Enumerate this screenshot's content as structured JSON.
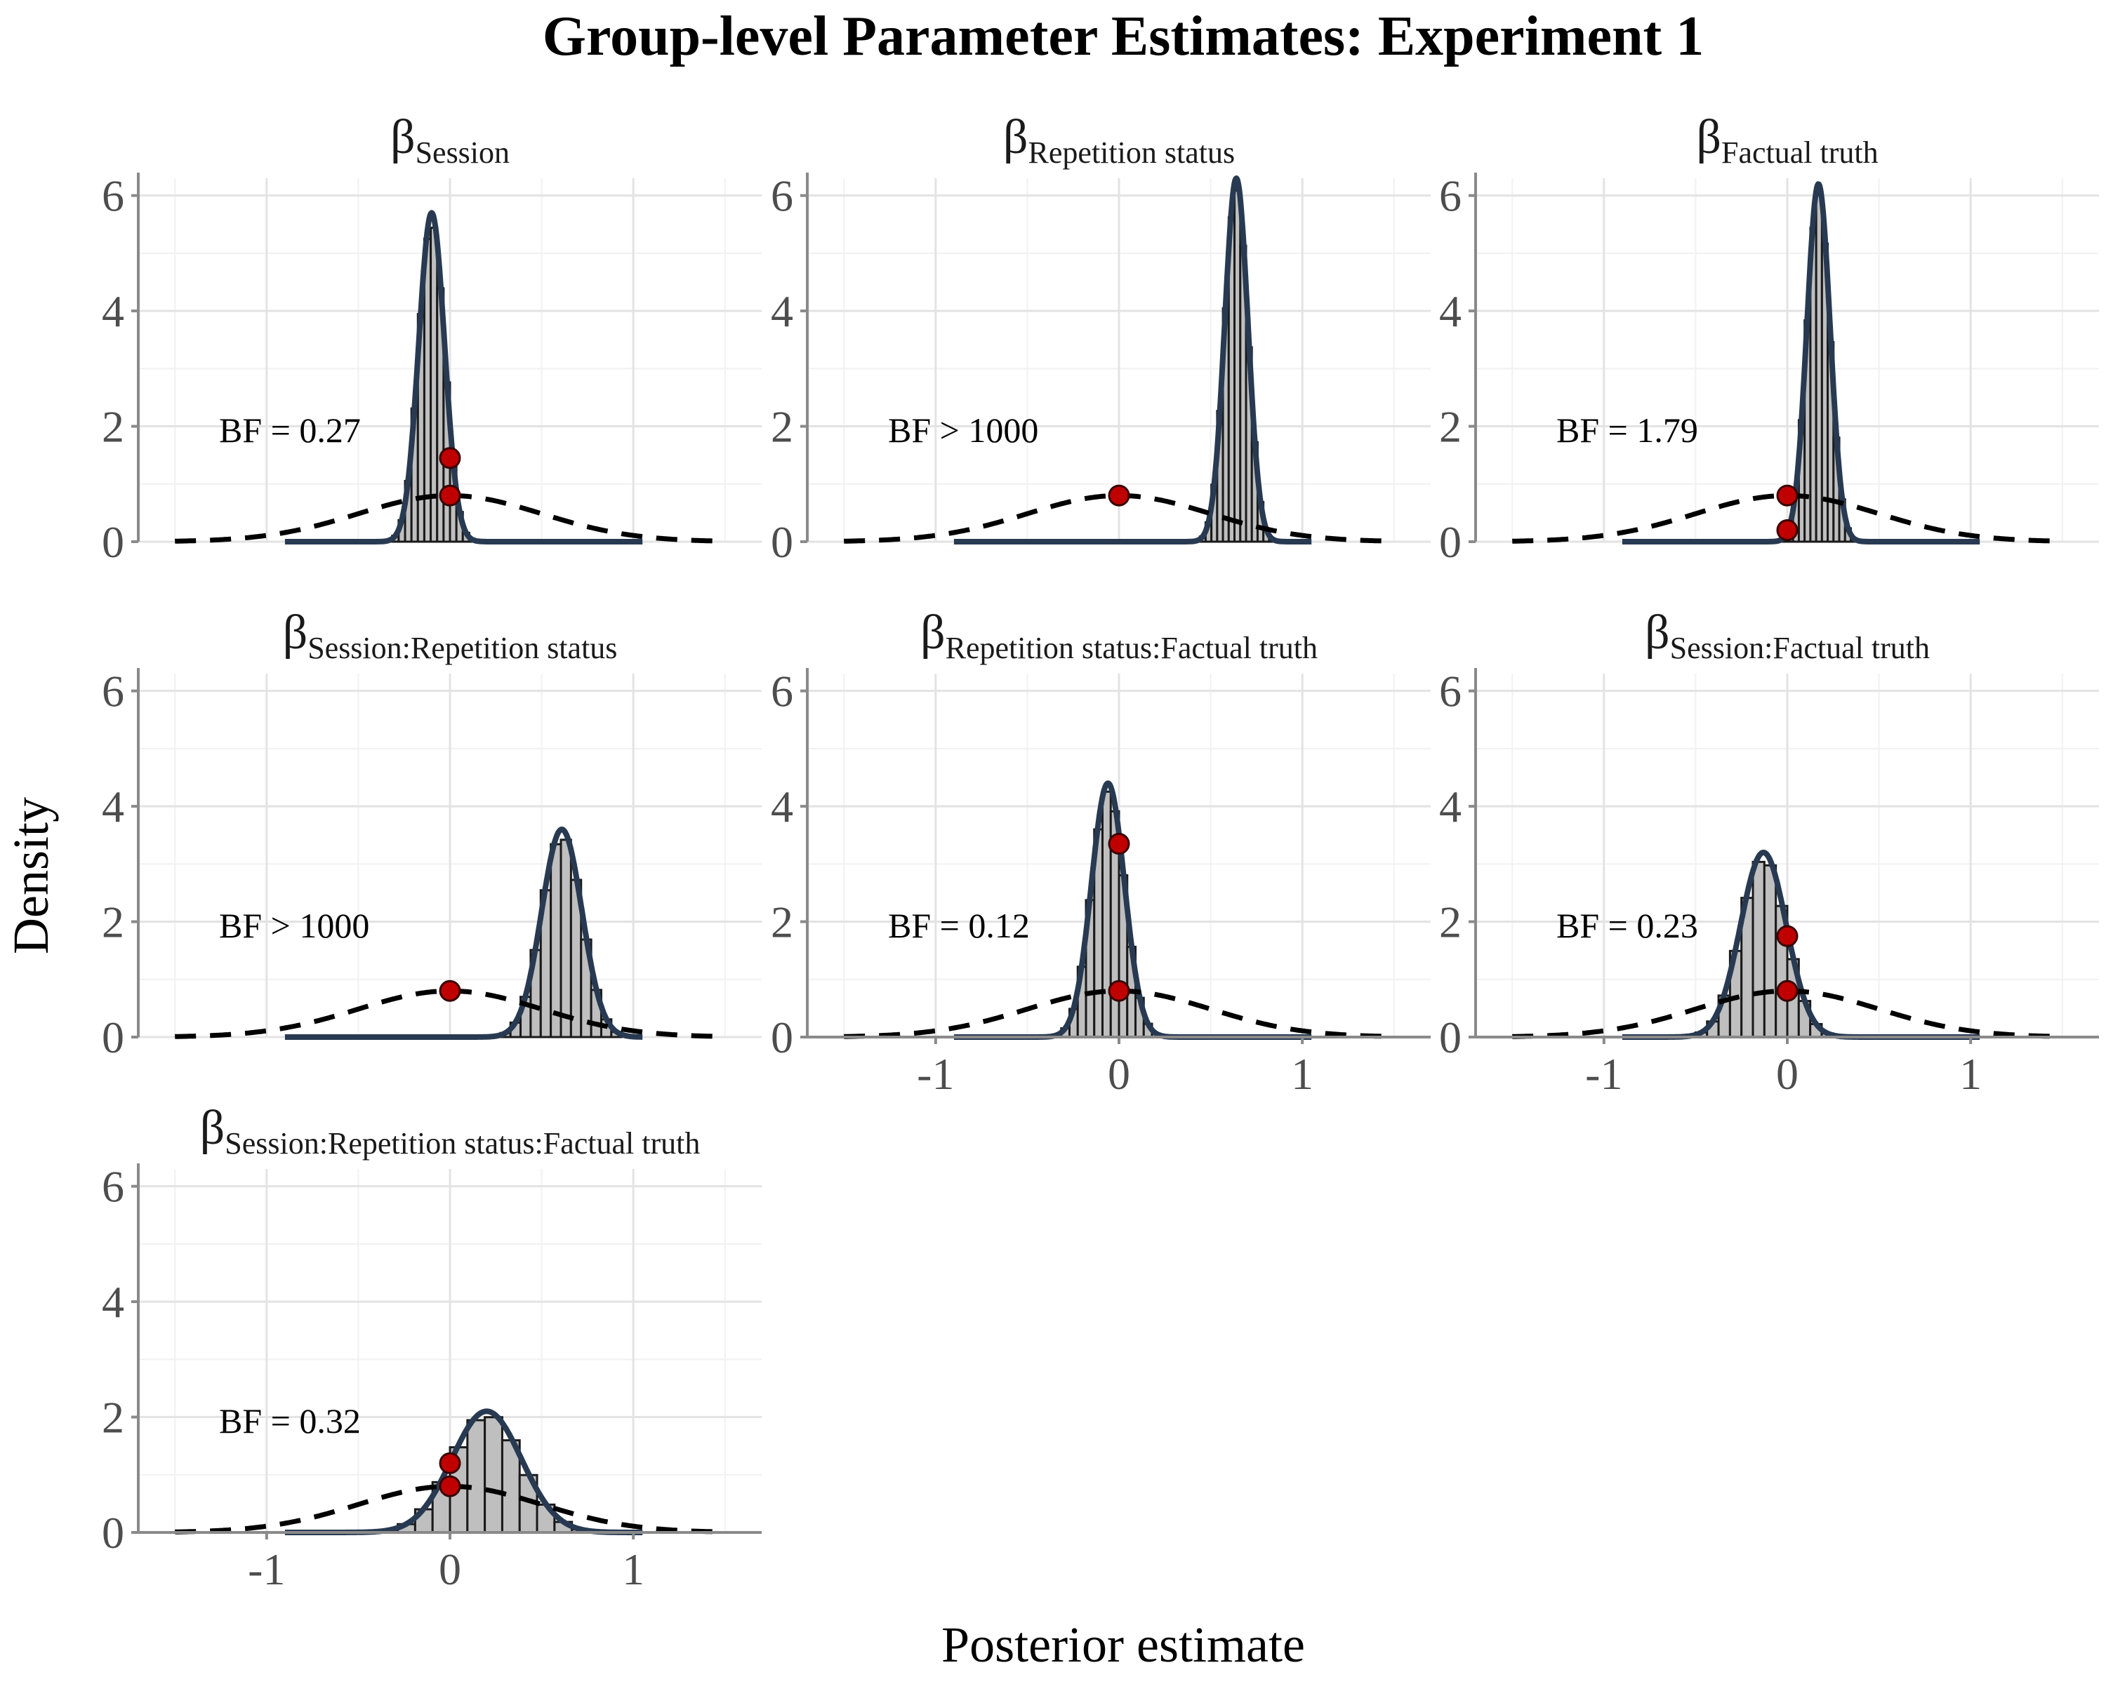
{
  "title": "Group-level Parameter Estimates: Experiment 1",
  "xlabel": "Posterior estimate",
  "ylabel": "Density",
  "beta_symbol": "β",
  "colors": {
    "bar_fill": "#bfbfbf",
    "bar_stroke": "#1a1a1a",
    "posterior_line": "#283a52",
    "prior_line": "#000000",
    "point_fill": "#c00000",
    "point_stroke": "#3a0000",
    "grid_major": "#e3e3e3",
    "grid_minor": "#f1f1f1",
    "axis": "#8a8a8a",
    "tick_text": "#4d4d4d"
  },
  "chart_data": [
    {
      "type": "histogram-density",
      "title_subscript": "Session",
      "bf_label": "BF = 0.27",
      "posterior": {
        "mean": -0.1,
        "sd": 0.07,
        "peak": 5.7
      },
      "prior_sd": 0.5,
      "points": [
        {
          "x": 0,
          "y": 1.45
        },
        {
          "x": 0,
          "y": 0.8
        }
      ],
      "xlim": [
        -1.7,
        1.7
      ],
      "ylim": [
        0,
        6.3
      ],
      "x_ticks": [
        -1,
        0,
        1
      ],
      "y_ticks": [
        0,
        2,
        4,
        6
      ],
      "show_x_ticks": false
    },
    {
      "type": "histogram-density",
      "title_subscript": "Repetition status",
      "bf_label": "BF > 1000",
      "posterior": {
        "mean": 0.64,
        "sd": 0.063,
        "peak": 6.3
      },
      "prior_sd": 0.5,
      "points": [
        {
          "x": 0,
          "y": 0.8
        }
      ],
      "xlim": [
        -1.7,
        1.7
      ],
      "ylim": [
        0,
        6.3
      ],
      "x_ticks": [
        -1,
        0,
        1
      ],
      "y_ticks": [
        0,
        2,
        4,
        6
      ],
      "show_x_ticks": false
    },
    {
      "type": "histogram-density",
      "title_subscript": "Factual truth",
      "bf_label": "BF = 1.79",
      "posterior": {
        "mean": 0.17,
        "sd": 0.063,
        "peak": 6.2
      },
      "prior_sd": 0.5,
      "points": [
        {
          "x": 0,
          "y": 0.8
        },
        {
          "x": 0,
          "y": 0.2
        }
      ],
      "xlim": [
        -1.7,
        1.7
      ],
      "ylim": [
        0,
        6.3
      ],
      "x_ticks": [
        -1,
        0,
        1
      ],
      "y_ticks": [
        0,
        2,
        4,
        6
      ],
      "show_x_ticks": false
    },
    {
      "type": "histogram-density",
      "title_subscript": "Session:Repetition status",
      "bf_label": "BF > 1000",
      "posterior": {
        "mean": 0.61,
        "sd": 0.11,
        "peak": 3.6
      },
      "prior_sd": 0.5,
      "points": [
        {
          "x": 0,
          "y": 0.8
        }
      ],
      "xlim": [
        -1.7,
        1.7
      ],
      "ylim": [
        0,
        6.3
      ],
      "x_ticks": [
        -1,
        0,
        1
      ],
      "y_ticks": [
        0,
        2,
        4,
        6
      ],
      "show_x_ticks": false
    },
    {
      "type": "histogram-density",
      "title_subscript": "Repetition status:Factual truth",
      "bf_label": "BF = 0.12",
      "posterior": {
        "mean": -0.06,
        "sd": 0.09,
        "peak": 4.4
      },
      "prior_sd": 0.5,
      "points": [
        {
          "x": 0,
          "y": 3.35
        },
        {
          "x": 0,
          "y": 0.8
        }
      ],
      "xlim": [
        -1.7,
        1.7
      ],
      "ylim": [
        0,
        6.3
      ],
      "x_ticks": [
        -1,
        0,
        1
      ],
      "y_ticks": [
        0,
        2,
        4,
        6
      ],
      "show_x_ticks": true
    },
    {
      "type": "histogram-density",
      "title_subscript": "Session:Factual truth",
      "bf_label": "BF = 0.23",
      "posterior": {
        "mean": -0.13,
        "sd": 0.125,
        "peak": 3.2
      },
      "prior_sd": 0.5,
      "points": [
        {
          "x": 0,
          "y": 1.75
        },
        {
          "x": 0,
          "y": 0.8
        }
      ],
      "xlim": [
        -1.7,
        1.7
      ],
      "ylim": [
        0,
        6.3
      ],
      "x_ticks": [
        -1,
        0,
        1
      ],
      "y_ticks": [
        0,
        2,
        4,
        6
      ],
      "show_x_ticks": true
    },
    {
      "type": "histogram-density",
      "title_subscript": "Session:Repetition status:Factual truth",
      "bf_label": "BF = 0.32",
      "posterior": {
        "mean": 0.2,
        "sd": 0.19,
        "peak": 2.1
      },
      "prior_sd": 0.5,
      "points": [
        {
          "x": 0,
          "y": 1.2
        },
        {
          "x": 0,
          "y": 0.8
        }
      ],
      "xlim": [
        -1.7,
        1.7
      ],
      "ylim": [
        0,
        6.3
      ],
      "x_ticks": [
        -1,
        0,
        1
      ],
      "y_ticks": [
        0,
        2,
        4,
        6
      ],
      "show_x_ticks": true
    }
  ]
}
